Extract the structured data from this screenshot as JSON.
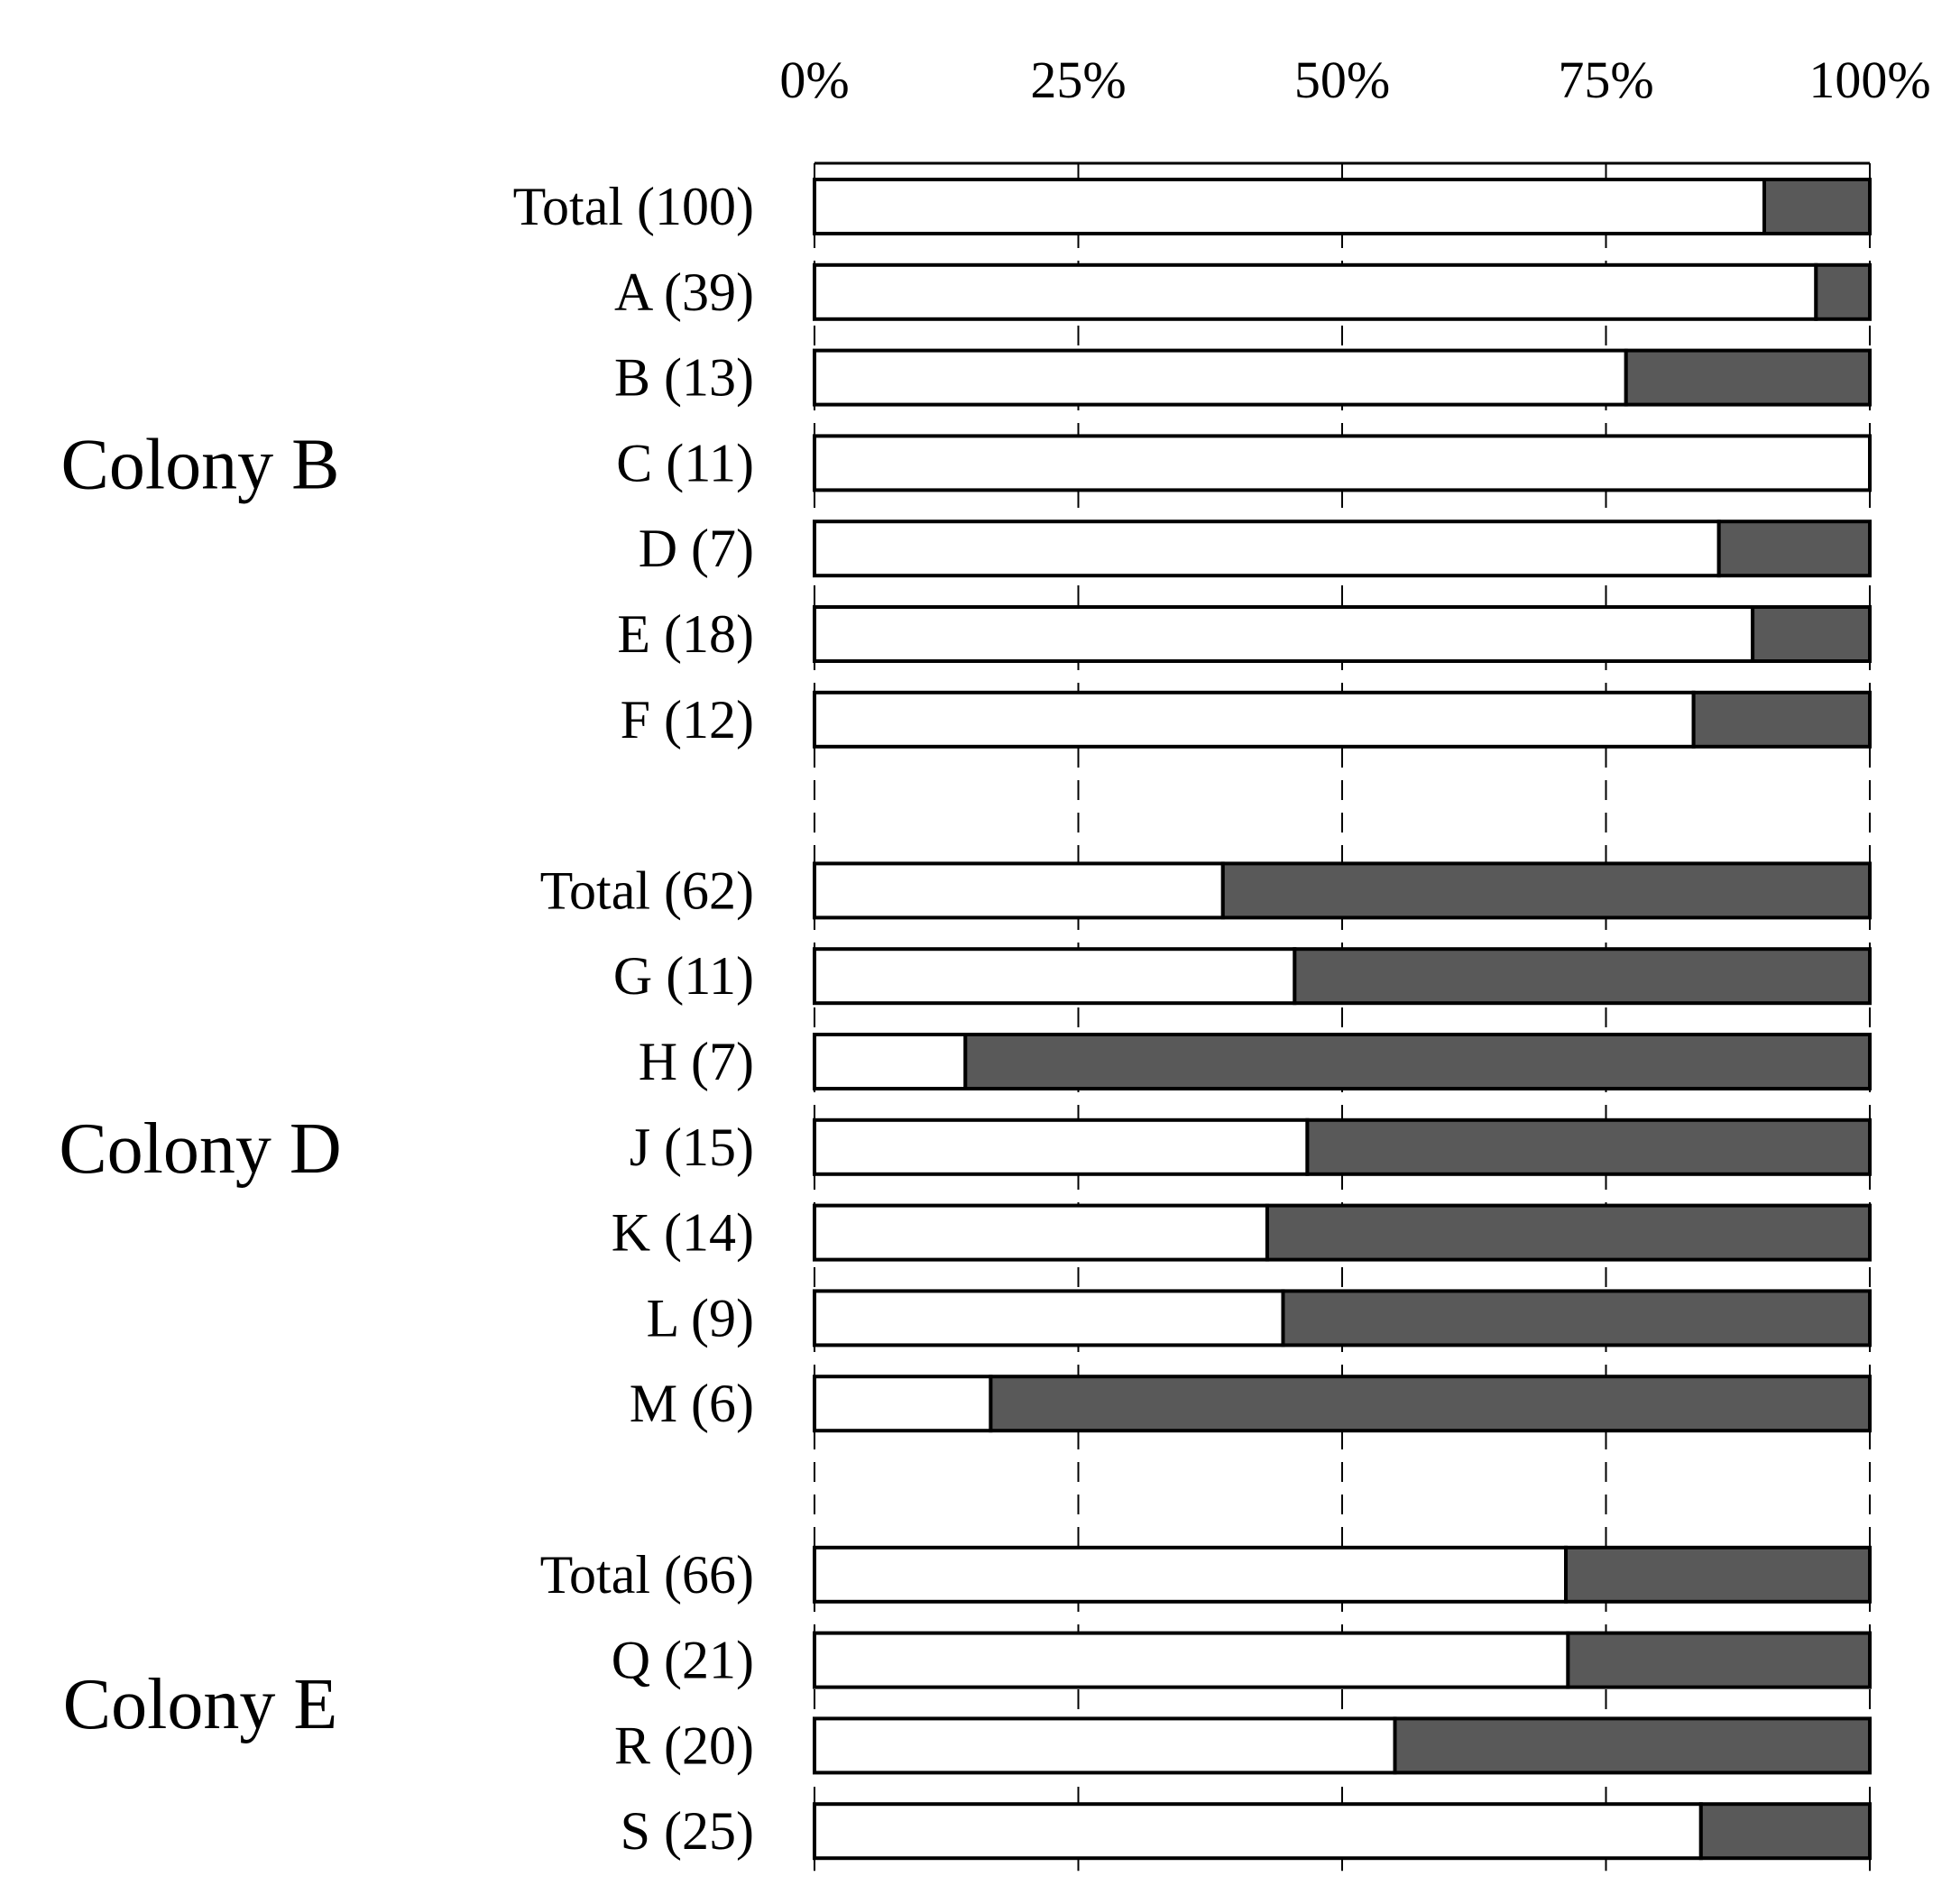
{
  "chart_data": {
    "type": "bar",
    "orientation": "horizontal",
    "stacked": true,
    "normalized_percent": true,
    "series_colors": {
      "first": "#ffffff",
      "second": "#595959"
    },
    "xlim": [
      0,
      100
    ],
    "x_ticks": [
      "0%",
      "25%",
      "50%",
      "75%",
      "100%"
    ],
    "x_tick_values": [
      0,
      25,
      50,
      75,
      100
    ],
    "groups": [
      {
        "name": "Colony B",
        "rows": [
          {
            "label": "Total (100)",
            "white_pct": 90,
            "dark_pct": 10
          },
          {
            "label": "A (39)",
            "white_pct": 94.9,
            "dark_pct": 5.1
          },
          {
            "label": "B (13)",
            "white_pct": 76.9,
            "dark_pct": 23.1
          },
          {
            "label": "C (11)",
            "white_pct": 100,
            "dark_pct": 0
          },
          {
            "label": "D (7)",
            "white_pct": 85.7,
            "dark_pct": 14.3
          },
          {
            "label": "E (18)",
            "white_pct": 88.9,
            "dark_pct": 11.1
          },
          {
            "label": "F (12)",
            "white_pct": 83.3,
            "dark_pct": 16.7
          }
        ]
      },
      {
        "name": "Colony D",
        "rows": [
          {
            "label": "Total (62)",
            "white_pct": 38.7,
            "dark_pct": 61.3
          },
          {
            "label": "G (11)",
            "white_pct": 45.5,
            "dark_pct": 54.5
          },
          {
            "label": "H (7)",
            "white_pct": 14.3,
            "dark_pct": 85.7
          },
          {
            "label": "J (15)",
            "white_pct": 46.7,
            "dark_pct": 53.3
          },
          {
            "label": "K (14)",
            "white_pct": 42.9,
            "dark_pct": 57.1
          },
          {
            "label": "L (9)",
            "white_pct": 44.4,
            "dark_pct": 55.6
          },
          {
            "label": "M (6)",
            "white_pct": 16.7,
            "dark_pct": 83.3
          }
        ]
      },
      {
        "name": "Colony E",
        "rows": [
          {
            "label": "Total (66)",
            "white_pct": 71.2,
            "dark_pct": 28.8
          },
          {
            "label": "Q (21)",
            "white_pct": 71.4,
            "dark_pct": 28.6
          },
          {
            "label": "R (20)",
            "white_pct": 55,
            "dark_pct": 45
          },
          {
            "label": "S (25)",
            "white_pct": 84,
            "dark_pct": 16
          }
        ]
      }
    ]
  }
}
